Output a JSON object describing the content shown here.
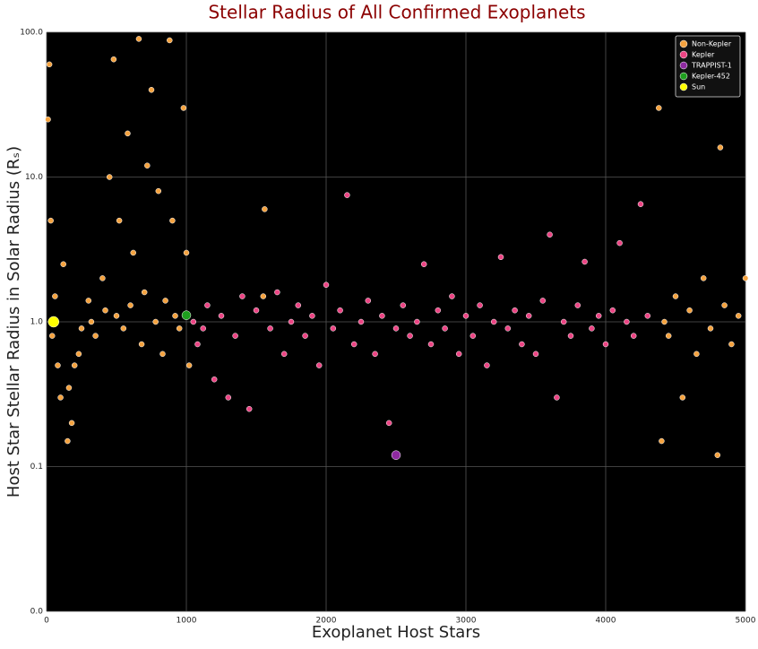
{
  "chart_data": {
    "type": "scatter",
    "title": "Stellar Radius of All Confirmed Exoplanets",
    "xlabel": "Exoplanet Host Stars",
    "ylabel": "Host Star Stellar Radius in Solar Radius (Rₛ)",
    "xlim": [
      0,
      5000
    ],
    "xticks": [
      0,
      1000,
      2000,
      3000,
      4000,
      5000
    ],
    "ylim": [
      0.01,
      100
    ],
    "yscale": "log",
    "yticks": [
      {
        "value": 0.01,
        "label": "0.0"
      },
      {
        "value": 0.1,
        "label": "0.1"
      },
      {
        "value": 1,
        "label": "1.0"
      },
      {
        "value": 10,
        "label": "10.0"
      },
      {
        "value": 100,
        "label": "100.0"
      }
    ],
    "grid": true,
    "legend": "upper right",
    "series": [
      {
        "name": "Non-Kepler",
        "color": "#f5a340",
        "size": 3,
        "x": [
          10,
          20,
          30,
          40,
          60,
          80,
          100,
          120,
          150,
          160,
          180,
          200,
          230,
          250,
          300,
          320,
          350,
          400,
          420,
          450,
          480,
          500,
          520,
          550,
          580,
          600,
          620,
          660,
          680,
          700,
          720,
          750,
          780,
          800,
          830,
          850,
          880,
          900,
          920,
          950,
          980,
          1000,
          1020,
          1550,
          1560,
          4380,
          4400,
          4420,
          4450,
          4500,
          4550,
          4600,
          4650,
          4700,
          4750,
          4800,
          4820,
          4850,
          4900,
          4950,
          5000
        ],
        "values": [
          25,
          60,
          5,
          0.8,
          1.5,
          0.5,
          0.3,
          2.5,
          0.15,
          0.35,
          0.2,
          0.5,
          0.6,
          0.9,
          1.4,
          1.0,
          0.8,
          2.0,
          1.2,
          10,
          65,
          1.1,
          5,
          0.9,
          20,
          1.3,
          3,
          90,
          0.7,
          1.6,
          12,
          40,
          1.0,
          8,
          0.6,
          1.4,
          88,
          5,
          1.1,
          0.9,
          30,
          3,
          0.5,
          1.5,
          6,
          30,
          0.15,
          1.0,
          0.8,
          1.5,
          0.3,
          1.2,
          0.6,
          2,
          0.9,
          0.12,
          16,
          1.3,
          0.7,
          1.1,
          2
        ]
      },
      {
        "name": "Kepler",
        "color": "#ec4584",
        "size": 3,
        "x": [
          1050,
          1080,
          1120,
          1150,
          1200,
          1250,
          1300,
          1350,
          1400,
          1450,
          1500,
          1600,
          1650,
          1700,
          1750,
          1800,
          1850,
          1900,
          1950,
          2000,
          2050,
          2100,
          2150,
          2200,
          2250,
          2300,
          2350,
          2400,
          2450,
          2500,
          2550,
          2600,
          2650,
          2700,
          2750,
          2800,
          2850,
          2900,
          2950,
          3000,
          3050,
          3100,
          3150,
          3200,
          3250,
          3300,
          3350,
          3400,
          3450,
          3500,
          3550,
          3600,
          3650,
          3700,
          3750,
          3800,
          3850,
          3900,
          3950,
          4000,
          4050,
          4100,
          4150,
          4200,
          4250,
          4300
        ],
        "values": [
          1.0,
          0.7,
          0.9,
          1.3,
          0.4,
          1.1,
          0.3,
          0.8,
          1.5,
          0.25,
          1.2,
          0.9,
          1.6,
          0.6,
          1.0,
          1.3,
          0.8,
          1.1,
          0.5,
          1.8,
          0.9,
          1.2,
          7.5,
          0.7,
          1.0,
          1.4,
          0.6,
          1.1,
          0.2,
          0.9,
          1.3,
          0.8,
          1.0,
          2.5,
          0.7,
          1.2,
          0.9,
          1.5,
          0.6,
          1.1,
          0.8,
          1.3,
          0.5,
          1.0,
          2.8,
          0.9,
          1.2,
          0.7,
          1.1,
          0.6,
          1.4,
          4,
          0.3,
          1.0,
          0.8,
          1.3,
          2.6,
          0.9,
          1.1,
          0.7,
          1.2,
          3.5,
          1.0,
          0.8,
          6.5,
          1.1
        ]
      },
      {
        "name": "TRAPPIST-1",
        "color": "#8e2aa0",
        "size": 5,
        "x": [
          2500
        ],
        "values": [
          0.12
        ]
      },
      {
        "name": "Kepler-452",
        "color": "#1e9e1e",
        "size": 5,
        "x": [
          1000
        ],
        "values": [
          1.11
        ]
      },
      {
        "name": "Sun",
        "color": "#ffff00",
        "size": 6,
        "x": [
          50
        ],
        "values": [
          1.0
        ]
      }
    ]
  }
}
